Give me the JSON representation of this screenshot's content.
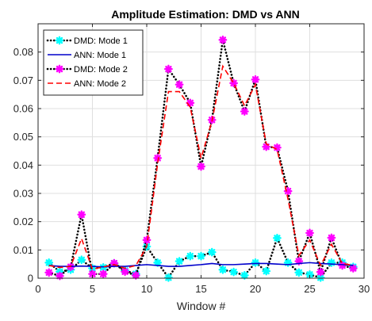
{
  "chart_data": {
    "type": "line",
    "title": "Amplitude Estimation: DMD vs ANN",
    "xlabel": "Window #",
    "ylabel": "",
    "xlim": [
      0,
      30
    ],
    "ylim": [
      0,
      0.09
    ],
    "xticks": [
      0,
      5,
      10,
      15,
      20,
      25,
      30
    ],
    "yticks": [
      0,
      0.01,
      0.02,
      0.03,
      0.04,
      0.05,
      0.06,
      0.07,
      0.08
    ],
    "grid": true,
    "legend_position": "top-left",
    "x": [
      1,
      2,
      3,
      4,
      5,
      6,
      7,
      8,
      9,
      10,
      11,
      12,
      13,
      14,
      15,
      16,
      17,
      18,
      19,
      20,
      21,
      22,
      23,
      24,
      25,
      26,
      27,
      28,
      29
    ],
    "series": [
      {
        "name": "DMD: Mode 1",
        "color": "#000000",
        "marker_color": "#00ffff",
        "style": "dotted-marker",
        "values": [
          0.0055,
          0.0023,
          0.003,
          0.0065,
          0.0035,
          0.0038,
          0.0053,
          0.0027,
          0.0015,
          0.0112,
          0.0055,
          0.0002,
          0.006,
          0.0078,
          0.0078,
          0.0092,
          0.003,
          0.0022,
          0.001,
          0.0055,
          0.0025,
          0.0142,
          0.0055,
          0.002,
          0.0013,
          0.0002,
          0.0055,
          0.0055,
          0.004
        ]
      },
      {
        "name": "ANN: Mode 1",
        "color": "#0000cc",
        "style": "solid",
        "values": [
          0.0045,
          0.0042,
          0.0042,
          0.0043,
          0.0042,
          0.004,
          0.0042,
          0.0042,
          0.0045,
          0.0048,
          0.0045,
          0.0042,
          0.0042,
          0.0045,
          0.0048,
          0.0052,
          0.0048,
          0.0048,
          0.005,
          0.0052,
          0.0052,
          0.005,
          0.0048,
          0.0052,
          0.0055,
          0.0052,
          0.005,
          0.0048,
          0.0045
        ]
      },
      {
        "name": "DMD: Mode 2",
        "color": "#000000",
        "marker_color": "#ff00ff",
        "style": "dotted-marker",
        "values": [
          0.002,
          0.0008,
          0.004,
          0.0225,
          0.0015,
          0.0015,
          0.0053,
          0.0023,
          0.001,
          0.0135,
          0.0425,
          0.074,
          0.0685,
          0.062,
          0.0395,
          0.056,
          0.0843,
          0.069,
          0.059,
          0.0703,
          0.0465,
          0.0462,
          0.0308,
          0.006,
          0.016,
          0.0022,
          0.0143,
          0.0045,
          0.0035
        ]
      },
      {
        "name": "ANN: Mode 2",
        "color": "#ff0000",
        "style": "dashed",
        "values": [
          0.0045,
          0.0038,
          0.0042,
          0.014,
          0.0032,
          0.004,
          0.0048,
          0.0035,
          0.0045,
          0.0112,
          0.0405,
          0.066,
          0.066,
          0.0605,
          0.0425,
          0.0555,
          0.075,
          0.069,
          0.061,
          0.0685,
          0.0475,
          0.0455,
          0.028,
          0.008,
          0.0135,
          0.0045,
          0.012,
          0.0052,
          0.0045
        ]
      }
    ]
  }
}
